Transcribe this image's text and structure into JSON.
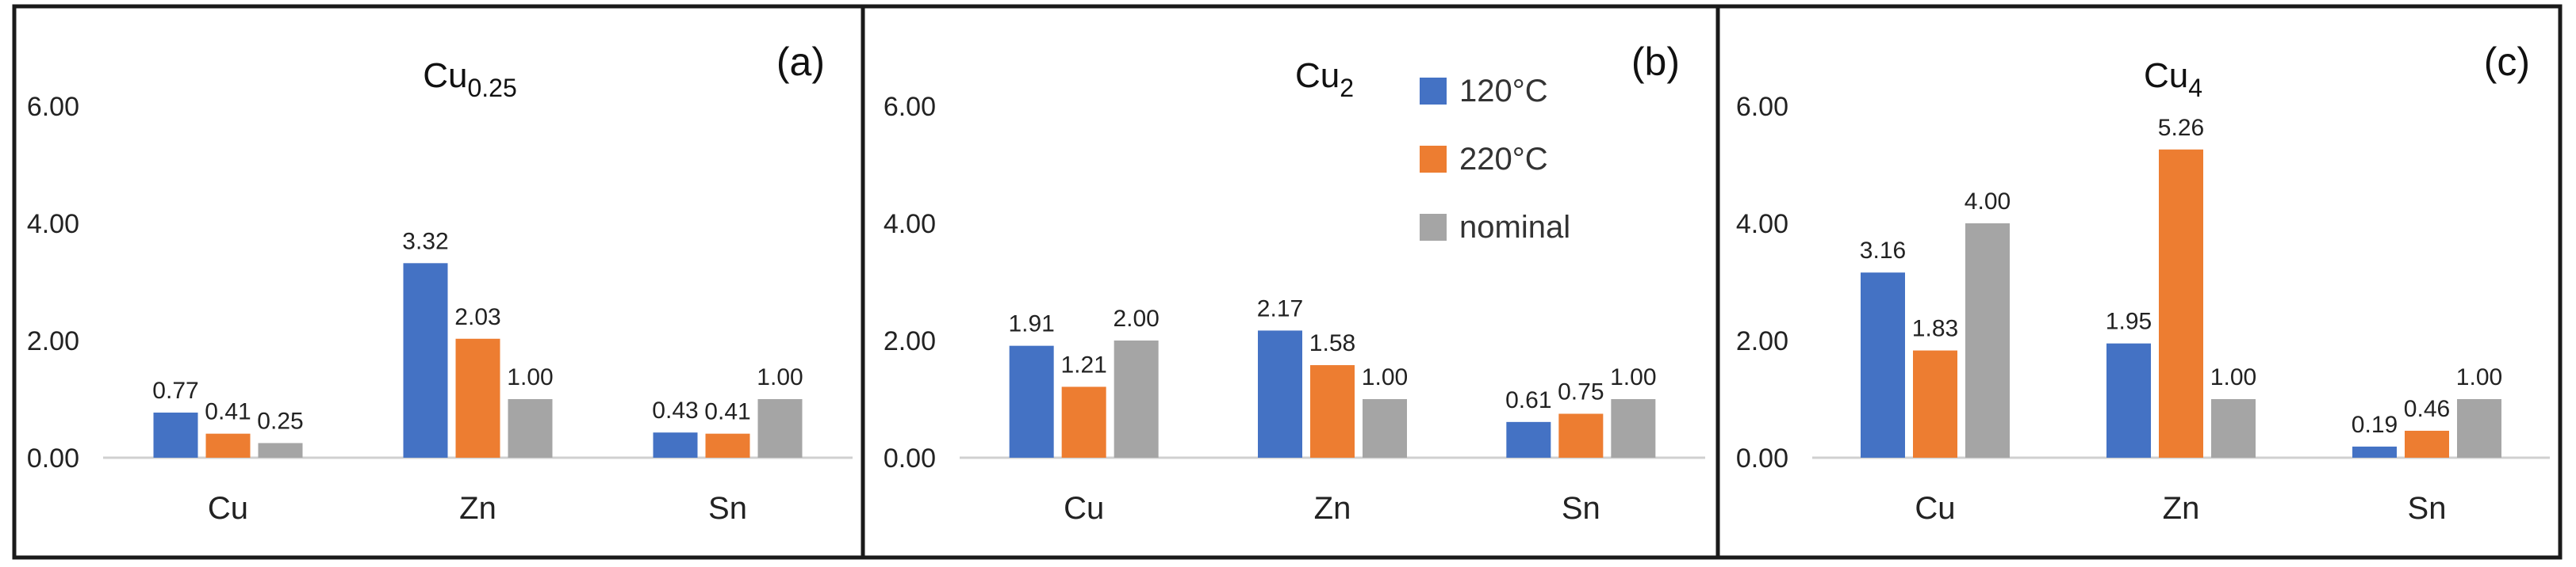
{
  "chart_data": [
    {
      "type": "bar",
      "panel_label": "(a)",
      "title": {
        "base": "Cu",
        "sub": "0.25"
      },
      "categories": [
        "Cu",
        "Zn",
        "Sn"
      ],
      "series": [
        {
          "name": "120°C",
          "color": "#4472c4",
          "values": [
            0.77,
            3.32,
            0.43
          ],
          "labels": [
            "0.77",
            "3.32",
            "0.43"
          ]
        },
        {
          "name": "220°C",
          "color": "#ed7d31",
          "values": [
            0.41,
            2.03,
            0.41
          ],
          "labels": [
            "0.41",
            "2.03",
            "0.41"
          ]
        },
        {
          "name": "nominal",
          "color": "#a5a5a5",
          "values": [
            0.25,
            1.0,
            1.0
          ],
          "labels": [
            "0.25",
            "1.00",
            "1.00"
          ]
        }
      ],
      "yticks": [
        "0.00",
        "2.00",
        "4.00",
        "6.00"
      ],
      "ylim": [
        0,
        6.5
      ]
    },
    {
      "type": "bar",
      "panel_label": "(b)",
      "title": {
        "base": "Cu",
        "sub": "2"
      },
      "categories": [
        "Cu",
        "Zn",
        "Sn"
      ],
      "series": [
        {
          "name": "120°C",
          "color": "#4472c4",
          "values": [
            1.91,
            2.17,
            0.61
          ],
          "labels": [
            "1.91",
            "2.17",
            "0.61"
          ]
        },
        {
          "name": "220°C",
          "color": "#ed7d31",
          "values": [
            1.21,
            1.58,
            0.75
          ],
          "labels": [
            "1.21",
            "1.58",
            "0.75"
          ]
        },
        {
          "name": "nominal",
          "color": "#a5a5a5",
          "values": [
            2.0,
            1.0,
            1.0
          ],
          "labels": [
            "2.00",
            "1.00",
            "1.00"
          ]
        }
      ],
      "yticks": [
        "0.00",
        "2.00",
        "4.00",
        "6.00"
      ],
      "ylim": [
        0,
        6.5
      ],
      "legend": {
        "placement": "top-right",
        "entries": [
          "120°C",
          "220°C",
          "nominal"
        ]
      }
    },
    {
      "type": "bar",
      "panel_label": "(c)",
      "title": {
        "base": "Cu",
        "sub": "4"
      },
      "categories": [
        "Cu",
        "Zn",
        "Sn"
      ],
      "series": [
        {
          "name": "120°C",
          "color": "#4472c4",
          "values": [
            3.16,
            1.95,
            0.19
          ],
          "labels": [
            "3.16",
            "1.95",
            "0.19"
          ]
        },
        {
          "name": "220°C",
          "color": "#ed7d31",
          "values": [
            1.83,
            5.26,
            0.46
          ],
          "labels": [
            "1.83",
            "5.26",
            "0.46"
          ]
        },
        {
          "name": "nominal",
          "color": "#a5a5a5",
          "values": [
            4.0,
            1.0,
            1.0
          ],
          "labels": [
            "4.00",
            "1.00",
            "1.00"
          ]
        }
      ],
      "yticks": [
        "0.00",
        "2.00",
        "4.00",
        "6.00"
      ],
      "ylim": [
        0,
        6.5
      ]
    }
  ]
}
